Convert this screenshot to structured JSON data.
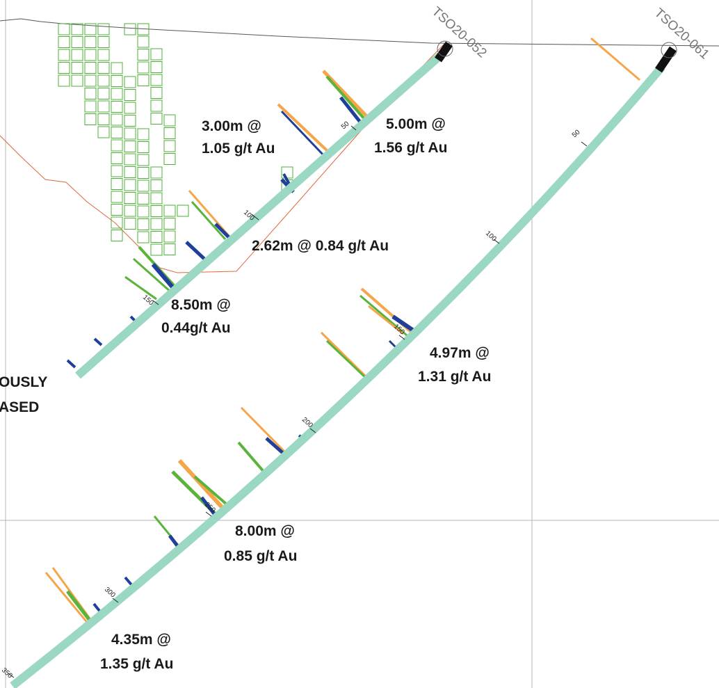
{
  "colors": {
    "trace": "#9ad8c4",
    "collar": "#111111",
    "orange": "#f5a54a",
    "green": "#5ab33a",
    "blue": "#1f3f9a",
    "grid": "#aaaaaa",
    "boundary": "#e0683a",
    "blocks": "#4caf37"
  },
  "holes": [
    {
      "id": "TSO20-052",
      "depth_ticks": [
        "50",
        "100",
        "150"
      ]
    },
    {
      "id": "TSO20-061",
      "depth_ticks": [
        "50",
        "100",
        "150",
        "200",
        "250",
        "300",
        "350"
      ]
    }
  ],
  "intercepts": [
    {
      "line1": "3.00m @",
      "line2": "1.05 g/t Au"
    },
    {
      "line1": "5.00m @",
      "line2": "1.56 g/t Au"
    },
    {
      "line1": "2.62m @ 0.84 g/t Au",
      "line2": ""
    },
    {
      "line1": "8.50m @",
      "line2": "0.44g/t Au"
    },
    {
      "line1": "4.97m @",
      "line2": "1.31 g/t Au"
    },
    {
      "line1": "8.00m @",
      "line2": "0.85 g/t Au"
    },
    {
      "line1": "4.35m @",
      "line2": "1.35 g/t Au"
    }
  ],
  "side_note": {
    "line1": "OUSLY",
    "line2": "ASED"
  }
}
